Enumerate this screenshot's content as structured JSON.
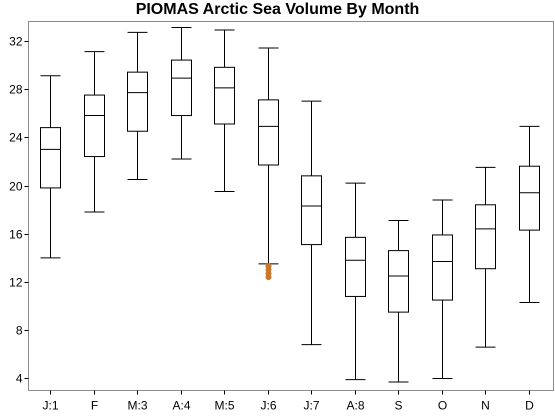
{
  "chart_data": {
    "type": "boxplot",
    "title": "PIOMAS Arctic Sea Volume By Month",
    "xlabel": "",
    "ylabel": "",
    "ylim": [
      3,
      33.6
    ],
    "yticks": [
      4,
      8,
      12,
      16,
      20,
      24,
      28,
      32
    ],
    "grid": false,
    "categories": [
      "J:1",
      "F",
      "M:3",
      "A:4",
      "M:5",
      "J:6",
      "J:7",
      "A:8",
      "S",
      "O",
      "N",
      "D"
    ],
    "boxes": [
      {
        "whisker_low": 14.0,
        "q1": 19.8,
        "median": 23.0,
        "q3": 24.8,
        "whisker_high": 29.1,
        "outliers": []
      },
      {
        "whisker_low": 17.8,
        "q1": 22.4,
        "median": 25.8,
        "q3": 27.5,
        "whisker_high": 31.1,
        "outliers": []
      },
      {
        "whisker_low": 20.5,
        "q1": 24.5,
        "median": 27.7,
        "q3": 29.4,
        "whisker_high": 32.7,
        "outliers": []
      },
      {
        "whisker_low": 22.2,
        "q1": 25.8,
        "median": 28.9,
        "q3": 30.4,
        "whisker_high": 33.1,
        "outliers": []
      },
      {
        "whisker_low": 19.5,
        "q1": 25.1,
        "median": 28.1,
        "q3": 29.8,
        "whisker_high": 32.9,
        "outliers": []
      },
      {
        "whisker_low": 13.5,
        "q1": 21.7,
        "median": 24.9,
        "q3": 27.1,
        "whisker_high": 31.4,
        "outliers": [
          13.3,
          13.0,
          12.7,
          12.4
        ]
      },
      {
        "whisker_low": 6.8,
        "q1": 15.1,
        "median": 18.3,
        "q3": 20.8,
        "whisker_high": 27.0,
        "outliers": []
      },
      {
        "whisker_low": 3.9,
        "q1": 10.8,
        "median": 13.8,
        "q3": 15.7,
        "whisker_high": 20.2,
        "outliers": []
      },
      {
        "whisker_low": 3.7,
        "q1": 9.5,
        "median": 12.5,
        "q3": 14.6,
        "whisker_high": 17.1,
        "outliers": []
      },
      {
        "whisker_low": 4.0,
        "q1": 10.5,
        "median": 13.7,
        "q3": 15.9,
        "whisker_high": 18.8,
        "outliers": []
      },
      {
        "whisker_low": 6.6,
        "q1": 13.1,
        "median": 16.4,
        "q3": 18.4,
        "whisker_high": 21.5,
        "outliers": []
      },
      {
        "whisker_low": 10.3,
        "q1": 16.3,
        "median": 19.4,
        "q3": 21.6,
        "whisker_high": 24.9,
        "outliers": []
      }
    ],
    "colors": {
      "box": "#000000",
      "outlier": "#c8782a",
      "frame": "#8c8c8c"
    }
  }
}
